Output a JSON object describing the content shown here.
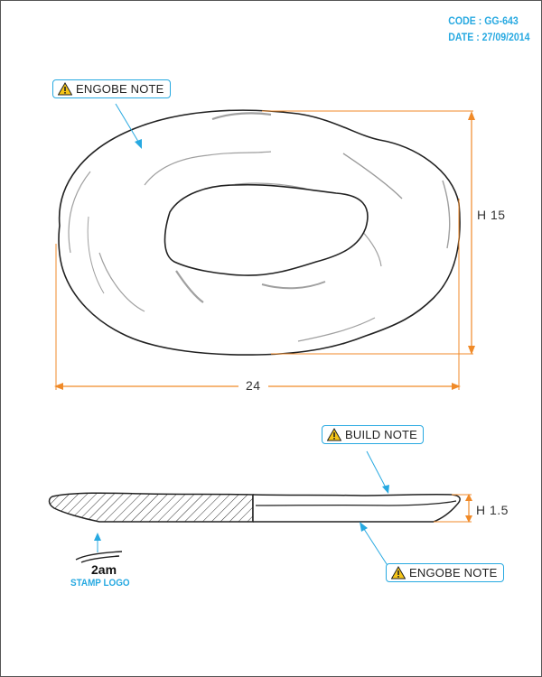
{
  "header": {
    "code": "CODE : GG-643",
    "date": "DATE : 27/09/2014"
  },
  "notes": {
    "engobe_top": "ENGOBE NOTE",
    "build": "BUILD NOTE",
    "engobe_bottom": "ENGOBE NOTE"
  },
  "dimensions": {
    "width": "24",
    "height_top": "H 15",
    "height_side": "H 1.5"
  },
  "stamp": {
    "brand": "2am",
    "label": "STAMP LOGO"
  },
  "colors": {
    "accent": "#27a9e1",
    "dimension": "#f08a28",
    "outline": "#222222",
    "shade": "#a0a0a0"
  }
}
